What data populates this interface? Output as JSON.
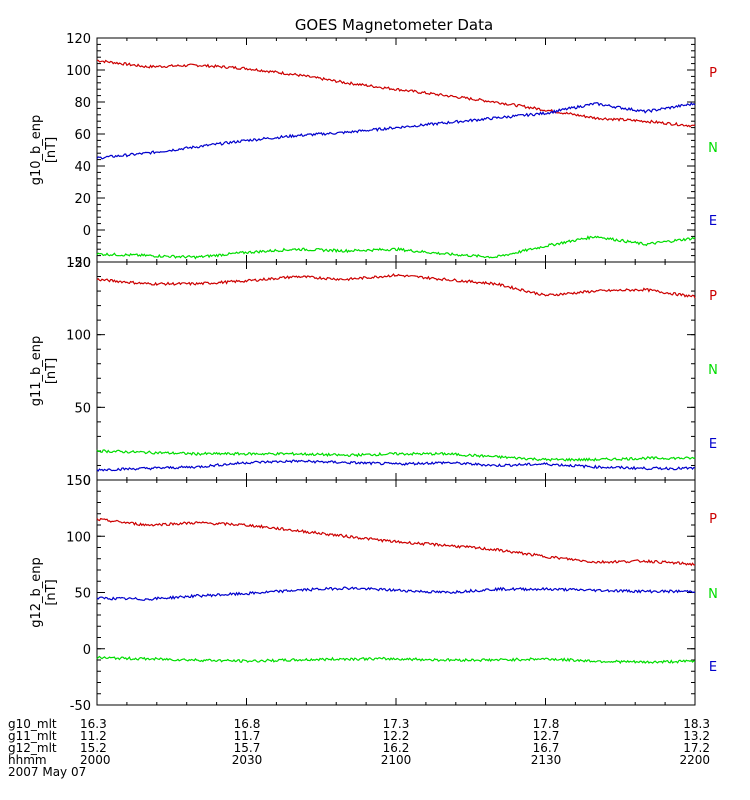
{
  "title": "GOES Magnetometer Data",
  "colors": {
    "P": "#cc0000",
    "N": "#00dd00",
    "E": "#0000cc",
    "axis": "#000000"
  },
  "chart_data": [
    {
      "type": "line",
      "ylabel": "g10_b_enp",
      "yunit": "[nT]",
      "ylim": [
        -20,
        120
      ],
      "yticks": [
        "120",
        "100",
        "80",
        "60",
        "40",
        "20",
        "0",
        "-20"
      ],
      "ytick_values": [
        120,
        100,
        80,
        60,
        40,
        20,
        0,
        -20
      ],
      "x": [
        0,
        10,
        20,
        30,
        40,
        50,
        60,
        70,
        80,
        90,
        100,
        110,
        120
      ],
      "series": [
        {
          "name": "P",
          "values": [
            106,
            102,
            103,
            101,
            97,
            92,
            88,
            84,
            80,
            75,
            70,
            68,
            65
          ]
        },
        {
          "name": "E",
          "values": [
            45,
            48,
            52,
            56,
            59,
            61,
            64,
            67,
            70,
            73,
            79,
            74,
            79
          ]
        },
        {
          "name": "N",
          "values": [
            -15,
            -16,
            -17,
            -14,
            -12,
            -13,
            -12,
            -15,
            -17,
            -10,
            -4,
            -9,
            -5
          ]
        }
      ],
      "legend": [
        "P",
        "N",
        "E"
      ]
    },
    {
      "type": "line",
      "ylabel": "g11_b_enp",
      "yunit": "[nT]",
      "ylim": [
        0,
        150
      ],
      "yticks": [
        "150",
        "100",
        "50",
        "0"
      ],
      "ytick_values": [
        150,
        100,
        50,
        0
      ],
      "x": [
        0,
        10,
        20,
        30,
        40,
        50,
        60,
        70,
        80,
        90,
        100,
        110,
        120
      ],
      "series": [
        {
          "name": "P",
          "values": [
            138,
            135,
            135,
            137,
            140,
            138,
            141,
            138,
            135,
            127,
            130,
            131,
            126
          ]
        },
        {
          "name": "N",
          "values": [
            20,
            19,
            18,
            18,
            18,
            17,
            18,
            18,
            16,
            14,
            14,
            15,
            15
          ]
        },
        {
          "name": "E",
          "values": [
            7,
            8,
            9,
            12,
            13,
            12,
            11,
            12,
            10,
            11,
            9,
            8,
            8
          ]
        }
      ],
      "legend": [
        "P",
        "N",
        "E"
      ]
    },
    {
      "type": "line",
      "ylabel": "g12_b_enp",
      "yunit": "[nT]",
      "ylim": [
        -50,
        150
      ],
      "yticks": [
        "150",
        "100",
        "50",
        "0",
        "-50"
      ],
      "ytick_values": [
        150,
        100,
        50,
        0,
        -50
      ],
      "x": [
        0,
        10,
        20,
        30,
        40,
        50,
        60,
        70,
        80,
        90,
        100,
        110,
        120
      ],
      "series": [
        {
          "name": "P",
          "values": [
            115,
            110,
            112,
            110,
            105,
            100,
            95,
            92,
            88,
            82,
            77,
            78,
            75
          ]
        },
        {
          "name": "E",
          "values": [
            45,
            44,
            47,
            49,
            52,
            54,
            52,
            50,
            53,
            53,
            52,
            51,
            51
          ]
        },
        {
          "name": "N",
          "values": [
            -8,
            -9,
            -10,
            -11,
            -10,
            -9,
            -9,
            -10,
            -10,
            -9,
            -11,
            -12,
            -11
          ]
        }
      ],
      "legend": [
        "P",
        "N",
        "E"
      ]
    }
  ],
  "footer": {
    "rows": [
      {
        "label": "g10_mlt",
        "values": [
          "16.3",
          "16.8",
          "17.3",
          "17.8",
          "18.3"
        ]
      },
      {
        "label": "g11_mlt",
        "values": [
          "11.2",
          "11.7",
          "12.2",
          "12.7",
          "13.2"
        ]
      },
      {
        "label": "g12_mlt",
        "values": [
          "15.2",
          "15.7",
          "16.2",
          "16.7",
          "17.2"
        ]
      },
      {
        "label": "hhmm",
        "values": [
          "2000",
          "2030",
          "2100",
          "2130",
          "2200"
        ]
      }
    ],
    "date": "2007 May 07"
  }
}
